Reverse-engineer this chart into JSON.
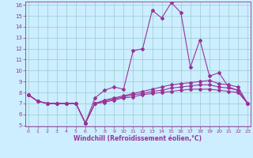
{
  "xlabel": "Windchill (Refroidissement éolien,°C)",
  "background_color": "#cceeff",
  "line_color": "#993399",
  "grid_color": "#99cccc",
  "x_values": [
    0,
    1,
    2,
    3,
    4,
    5,
    6,
    7,
    8,
    9,
    10,
    11,
    12,
    13,
    14,
    15,
    16,
    17,
    18,
    19,
    20,
    21,
    22,
    23
  ],
  "series1": [
    7.8,
    7.2,
    7.0,
    7.0,
    7.0,
    7.0,
    5.2,
    7.5,
    8.2,
    8.5,
    8.3,
    11.8,
    12.0,
    15.5,
    14.8,
    16.2,
    15.3,
    10.3,
    12.8,
    9.5,
    9.8,
    8.5,
    8.2,
    7.0
  ],
  "series2": [
    7.8,
    7.2,
    7.0,
    7.0,
    7.0,
    7.0,
    5.2,
    7.0,
    7.3,
    7.5,
    7.7,
    7.9,
    8.1,
    8.3,
    8.5,
    8.7,
    8.8,
    8.9,
    9.0,
    9.1,
    8.8,
    8.7,
    8.5,
    7.0
  ],
  "series3": [
    7.8,
    7.2,
    7.0,
    7.0,
    7.0,
    7.0,
    5.2,
    7.0,
    7.2,
    7.4,
    7.6,
    7.8,
    7.9,
    8.1,
    8.2,
    8.4,
    8.5,
    8.6,
    8.7,
    8.7,
    8.5,
    8.4,
    8.2,
    7.0
  ],
  "series4": [
    7.8,
    7.2,
    7.0,
    7.0,
    7.0,
    7.0,
    5.2,
    7.0,
    7.1,
    7.3,
    7.5,
    7.6,
    7.8,
    7.9,
    8.0,
    8.1,
    8.2,
    8.3,
    8.3,
    8.3,
    8.2,
    8.1,
    8.0,
    7.0
  ],
  "ylim_min": 5,
  "ylim_max": 16,
  "xlim_min": 0,
  "xlim_max": 23,
  "yticks": [
    5,
    6,
    7,
    8,
    9,
    10,
    11,
    12,
    13,
    14,
    15,
    16
  ],
  "xticks": [
    0,
    1,
    2,
    3,
    4,
    5,
    6,
    7,
    8,
    9,
    10,
    11,
    12,
    13,
    14,
    15,
    16,
    17,
    18,
    19,
    20,
    21,
    22,
    23
  ],
  "xlabel_fontsize": 5.5,
  "tick_fontsize_x": 4.5,
  "tick_fontsize_y": 5.0,
  "linewidth": 0.8,
  "markersize": 2.0
}
